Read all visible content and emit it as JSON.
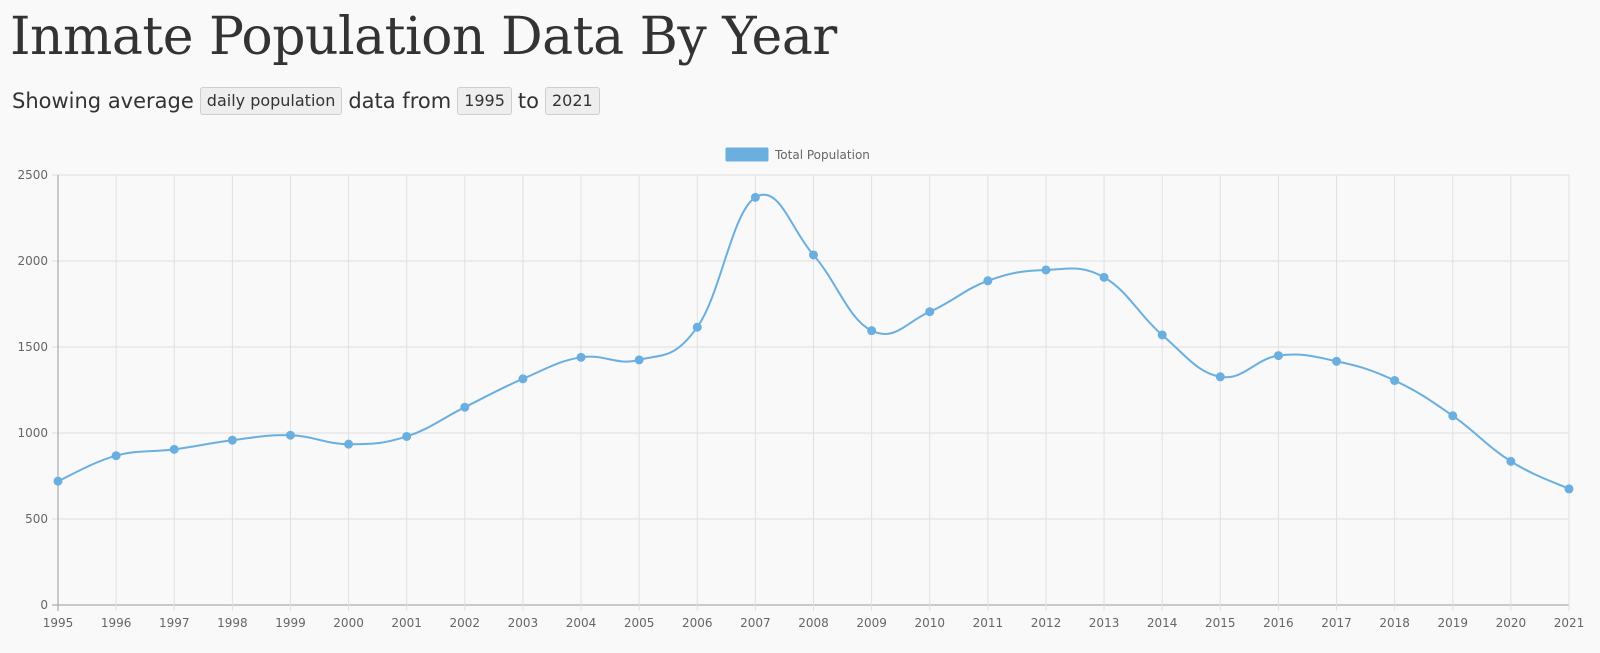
{
  "header": {
    "title": "Inmate Population Data By Year"
  },
  "controls": {
    "prefix": "Showing average",
    "metric": "daily population",
    "middle": "data from",
    "start_year": "1995",
    "joiner": "to",
    "end_year": "2021"
  },
  "colors": {
    "series": "#6aafe0",
    "grid": "#e0e0e0",
    "axis": "#999999"
  },
  "chart_data": {
    "type": "line",
    "title": "",
    "xlabel": "",
    "ylabel": "",
    "ylim": [
      0,
      2500
    ],
    "yticks": [
      0,
      500,
      1000,
      1500,
      2000,
      2500
    ],
    "grid": true,
    "legend_position": "top-center",
    "categories": [
      "1995",
      "1996",
      "1997",
      "1998",
      "1999",
      "2000",
      "2001",
      "2002",
      "2003",
      "2004",
      "2005",
      "2006",
      "2007",
      "2008",
      "2009",
      "2010",
      "2011",
      "2012",
      "2013",
      "2014",
      "2015",
      "2016",
      "2017",
      "2018",
      "2019",
      "2020",
      "2021"
    ],
    "series": [
      {
        "name": "Total Population",
        "values": [
          720,
          868,
          905,
          958,
          987,
          935,
          980,
          1150,
          1315,
          1440,
          1425,
          1615,
          2370,
          2035,
          1595,
          1705,
          1885,
          1948,
          1905,
          1570,
          1327,
          1450,
          1417,
          1305,
          1100,
          835,
          675
        ]
      }
    ]
  }
}
